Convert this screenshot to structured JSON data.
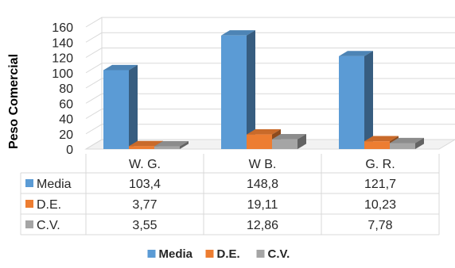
{
  "chart_data": {
    "type": "bar",
    "ylabel": "Peso Comercial",
    "ylim": [
      0,
      160
    ],
    "yticks": [
      "0",
      "20",
      "40",
      "60",
      "80",
      "100",
      "120",
      "140",
      "160"
    ],
    "categories": [
      "W. G.",
      "W B.",
      "G. R."
    ],
    "series": [
      {
        "name": "Media",
        "values": [
          103.4,
          148.8,
          121.7
        ],
        "labels": [
          "103,4",
          "148,8",
          "121,7"
        ],
        "color": "#5b9bd5"
      },
      {
        "name": "D.E.",
        "values": [
          3.77,
          19.11,
          10.23
        ],
        "labels": [
          "3,77",
          "19,11",
          "10,23"
        ],
        "color": "#ed7d31"
      },
      {
        "name": "C.V.",
        "values": [
          3.55,
          12.86,
          7.78
        ],
        "labels": [
          "3,55",
          "12,86",
          "7,78"
        ],
        "color": "#a5a5a5"
      }
    ],
    "grid": true,
    "legend_position": "bottom",
    "data_table": true
  }
}
